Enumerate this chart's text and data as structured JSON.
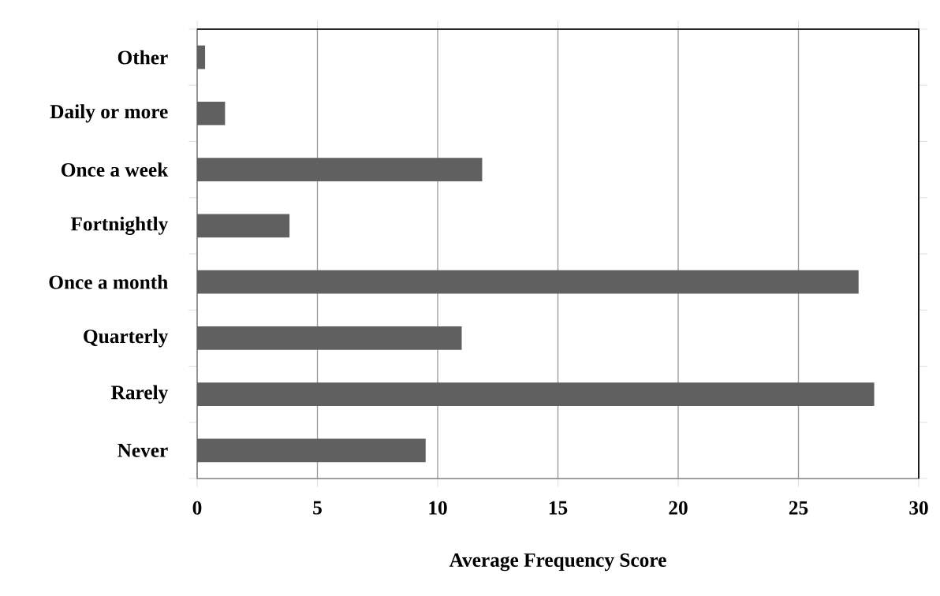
{
  "chart_data": {
    "type": "bar",
    "orientation": "horizontal",
    "xlabel": "Average Frequency Score",
    "categories": [
      "Other",
      "Daily or more",
      "Once a week",
      "Fortnightly",
      "Once a month",
      "Quarterly",
      "Rarely",
      "Never"
    ],
    "values": [
      0.33,
      1.16,
      11.85,
      3.84,
      27.5,
      11.0,
      28.15,
      9.5
    ],
    "color": "#606060",
    "xlim": [
      0,
      30
    ],
    "xticks": [
      0,
      5,
      10,
      15,
      20,
      25,
      30
    ],
    "grid": "x"
  }
}
